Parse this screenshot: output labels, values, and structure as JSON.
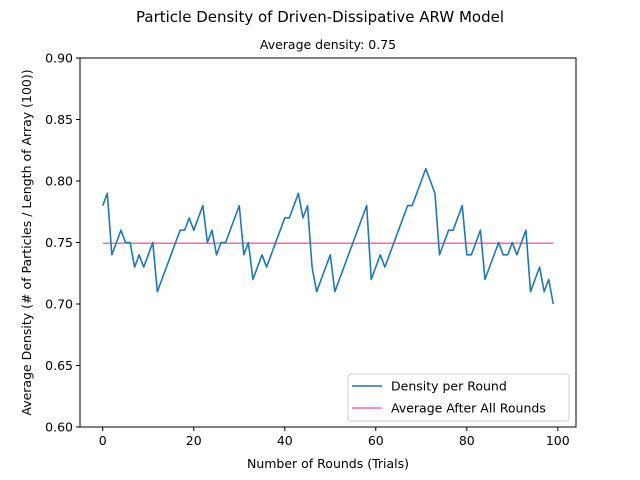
{
  "chart_data": {
    "type": "line",
    "title": "Particle Density of Driven-Dissipative ARW Model",
    "subtitle": "Average density: 0.75",
    "xlabel": "Number of Rounds (Trials)",
    "ylabel": "Average Density (# of Particles / Length of Array (100))",
    "xlim": [
      -5,
      104
    ],
    "ylim": [
      0.6,
      0.9
    ],
    "xticks": [
      0,
      20,
      40,
      60,
      80,
      100
    ],
    "yticks": [
      0.6,
      0.65,
      0.7,
      0.75,
      0.8,
      0.85,
      0.9
    ],
    "xtick_labels": [
      "0",
      "20",
      "40",
      "60",
      "80",
      "100"
    ],
    "ytick_labels": [
      "0.60",
      "0.65",
      "0.70",
      "0.75",
      "0.80",
      "0.85",
      "0.90"
    ],
    "grid": false,
    "legend_position": "lower-right",
    "series": [
      {
        "name": "Density per Round",
        "color": "#1f77b4",
        "x": [
          0,
          1,
          2,
          3,
          4,
          5,
          6,
          7,
          8,
          9,
          10,
          11,
          12,
          13,
          14,
          15,
          16,
          17,
          18,
          19,
          20,
          21,
          22,
          23,
          24,
          25,
          26,
          27,
          28,
          29,
          30,
          31,
          32,
          33,
          34,
          35,
          36,
          37,
          38,
          39,
          40,
          41,
          42,
          43,
          44,
          45,
          46,
          47,
          48,
          49,
          50,
          51,
          52,
          53,
          54,
          55,
          56,
          57,
          58,
          59,
          60,
          61,
          62,
          63,
          64,
          65,
          66,
          67,
          68,
          69,
          70,
          71,
          72,
          73,
          74,
          75,
          76,
          77,
          78,
          79,
          80,
          81,
          82,
          83,
          84,
          85,
          86,
          87,
          88,
          89,
          90,
          91,
          92,
          93,
          94,
          95,
          96,
          97,
          98,
          99
        ],
        "values": [
          0.78,
          0.79,
          0.74,
          0.75,
          0.76,
          0.75,
          0.75,
          0.73,
          0.74,
          0.73,
          0.74,
          0.75,
          0.71,
          0.72,
          0.73,
          0.74,
          0.75,
          0.76,
          0.76,
          0.77,
          0.76,
          0.77,
          0.78,
          0.75,
          0.76,
          0.74,
          0.75,
          0.75,
          0.76,
          0.77,
          0.78,
          0.74,
          0.75,
          0.72,
          0.73,
          0.74,
          0.73,
          0.74,
          0.75,
          0.76,
          0.77,
          0.77,
          0.78,
          0.79,
          0.77,
          0.78,
          0.73,
          0.71,
          0.72,
          0.73,
          0.74,
          0.71,
          0.72,
          0.73,
          0.74,
          0.75,
          0.76,
          0.77,
          0.78,
          0.72,
          0.73,
          0.74,
          0.73,
          0.74,
          0.75,
          0.76,
          0.77,
          0.78,
          0.78,
          0.79,
          0.8,
          0.81,
          0.8,
          0.79,
          0.74,
          0.75,
          0.76,
          0.76,
          0.77,
          0.78,
          0.74,
          0.74,
          0.75,
          0.76,
          0.72,
          0.73,
          0.74,
          0.75,
          0.74,
          0.74,
          0.75,
          0.74,
          0.75,
          0.76,
          0.71,
          0.72,
          0.73,
          0.71,
          0.72,
          0.7
        ]
      },
      {
        "name": "Average After All Rounds",
        "color": "#ff69b4",
        "x": [
          0,
          99
        ],
        "values": [
          0.7494,
          0.7494
        ]
      }
    ]
  }
}
